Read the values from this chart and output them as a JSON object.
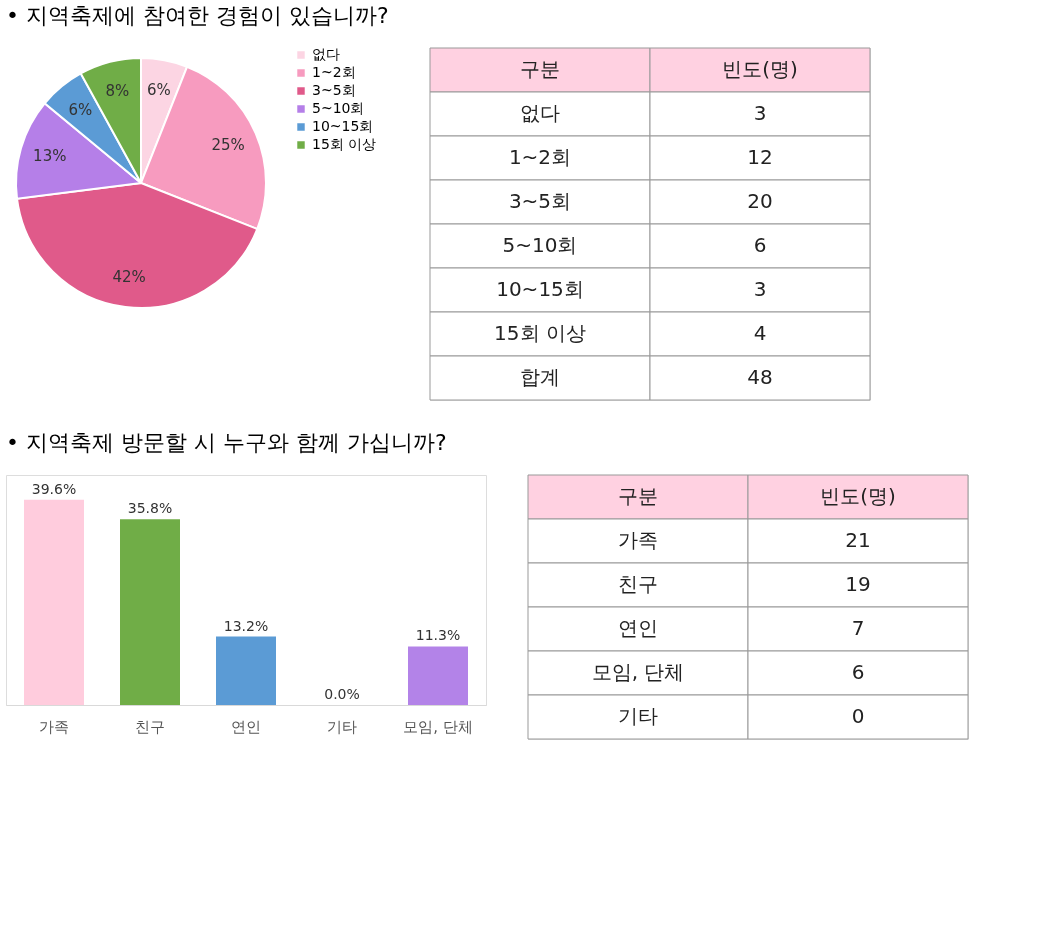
{
  "chart_data": [
    {
      "type": "pie",
      "title": "• 지역축제에 참여한 경험이 있습니까?",
      "categories": [
        "없다",
        "1~2회",
        "3~5회",
        "5~10회",
        "10~15회",
        "15회 이상"
      ],
      "values": [
        6,
        25,
        42,
        13,
        6,
        8
      ],
      "value_labels": [
        "6%",
        "25%",
        "42%",
        "13%",
        "6%",
        "8%"
      ],
      "colors": [
        "#fcd5e3",
        "#f79bbf",
        "#e05a8a",
        "#b57fe8",
        "#5b9bd5",
        "#70ad47"
      ],
      "legend": "right"
    },
    {
      "type": "other",
      "xlabel": "구분",
      "ylabel": "빈도(명)",
      "categories": [
        "없다",
        "1~2회",
        "3~5회",
        "5~10회",
        "10~15회",
        "15회 이상",
        "합계"
      ],
      "values": [
        3,
        12,
        20,
        6,
        3,
        4,
        48
      ],
      "data_labels": true
    },
    {
      "type": "bar",
      "title": "• 지역축제 방문할 시 누구와 함께 가십니까?",
      "categories": [
        "가족",
        "친구",
        "연인",
        "기타",
        "모임, 단체"
      ],
      "values": [
        39.6,
        35.8,
        13.2,
        0.0,
        11.3
      ],
      "value_labels": [
        "39.6%",
        "35.8%",
        "13.2%",
        "0.0%",
        "11.3%"
      ],
      "colors": [
        "#ffccdd",
        "#70ad47",
        "#5b9bd5",
        "#a5a5a5",
        "#b383e8"
      ],
      "tick_labels": "x",
      "grid": false
    },
    {
      "type": "other",
      "xlabel": "구분",
      "ylabel": "빈도(명)",
      "categories": [
        "가족",
        "친구",
        "연인",
        "모임, 단체",
        "기타"
      ],
      "values": [
        21,
        19,
        7,
        6,
        0
      ],
      "data_labels": true
    }
  ]
}
